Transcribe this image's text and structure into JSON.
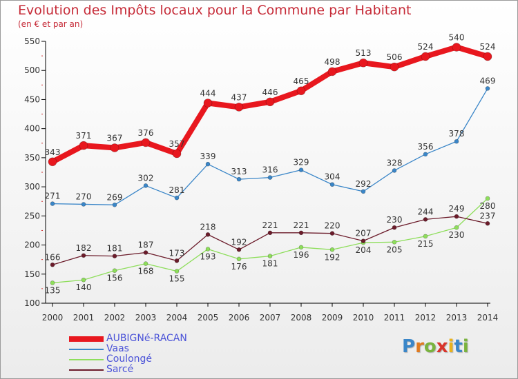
{
  "title": "Evolution des Impôts locaux pour la Commune par Habitant",
  "subtitle": "(en € et par an)",
  "brand": {
    "text": "Proxiti",
    "letter_colors": [
      "#3a86c8",
      "#e07a1f",
      "#7ab33e",
      "#d9342b",
      "#e9b21c",
      "#3a86c8",
      "#7ab33e"
    ]
  },
  "chart_data": {
    "type": "line",
    "title": "Evolution des Impôts locaux pour la Commune par Habitant",
    "subtitle": "(en € et par an)",
    "x": [
      "2000",
      "2001",
      "2002",
      "2003",
      "2004",
      "2005",
      "2006",
      "2007",
      "2008",
      "2009",
      "2010",
      "2011",
      "2012",
      "2013",
      "2014"
    ],
    "ylim": [
      100,
      550
    ],
    "yticks": [
      100,
      150,
      200,
      250,
      300,
      350,
      400,
      450,
      500,
      550
    ],
    "grid": false,
    "legend_position": "bottom-left",
    "series": [
      {
        "name": "AUBIGNé-RACAN",
        "color": "#e8171e",
        "values": [
          343,
          371,
          367,
          376,
          357,
          444,
          437,
          446,
          465,
          498,
          513,
          506,
          524,
          540,
          524
        ]
      },
      {
        "name": "Vaas",
        "color": "#3a86c8",
        "values": [
          271,
          270,
          269,
          302,
          281,
          339,
          313,
          316,
          329,
          304,
          292,
          328,
          356,
          378,
          469
        ]
      },
      {
        "name": "Coulongé",
        "color": "#8ede5b",
        "values": [
          135,
          140,
          156,
          168,
          155,
          193,
          176,
          181,
          196,
          192,
          204,
          205,
          215,
          230,
          280
        ]
      },
      {
        "name": "Sarcé",
        "color": "#6b1b2a",
        "values": [
          166,
          182,
          181,
          187,
          173,
          218,
          192,
          221,
          221,
          220,
          207,
          230,
          244,
          249,
          237
        ]
      }
    ]
  }
}
